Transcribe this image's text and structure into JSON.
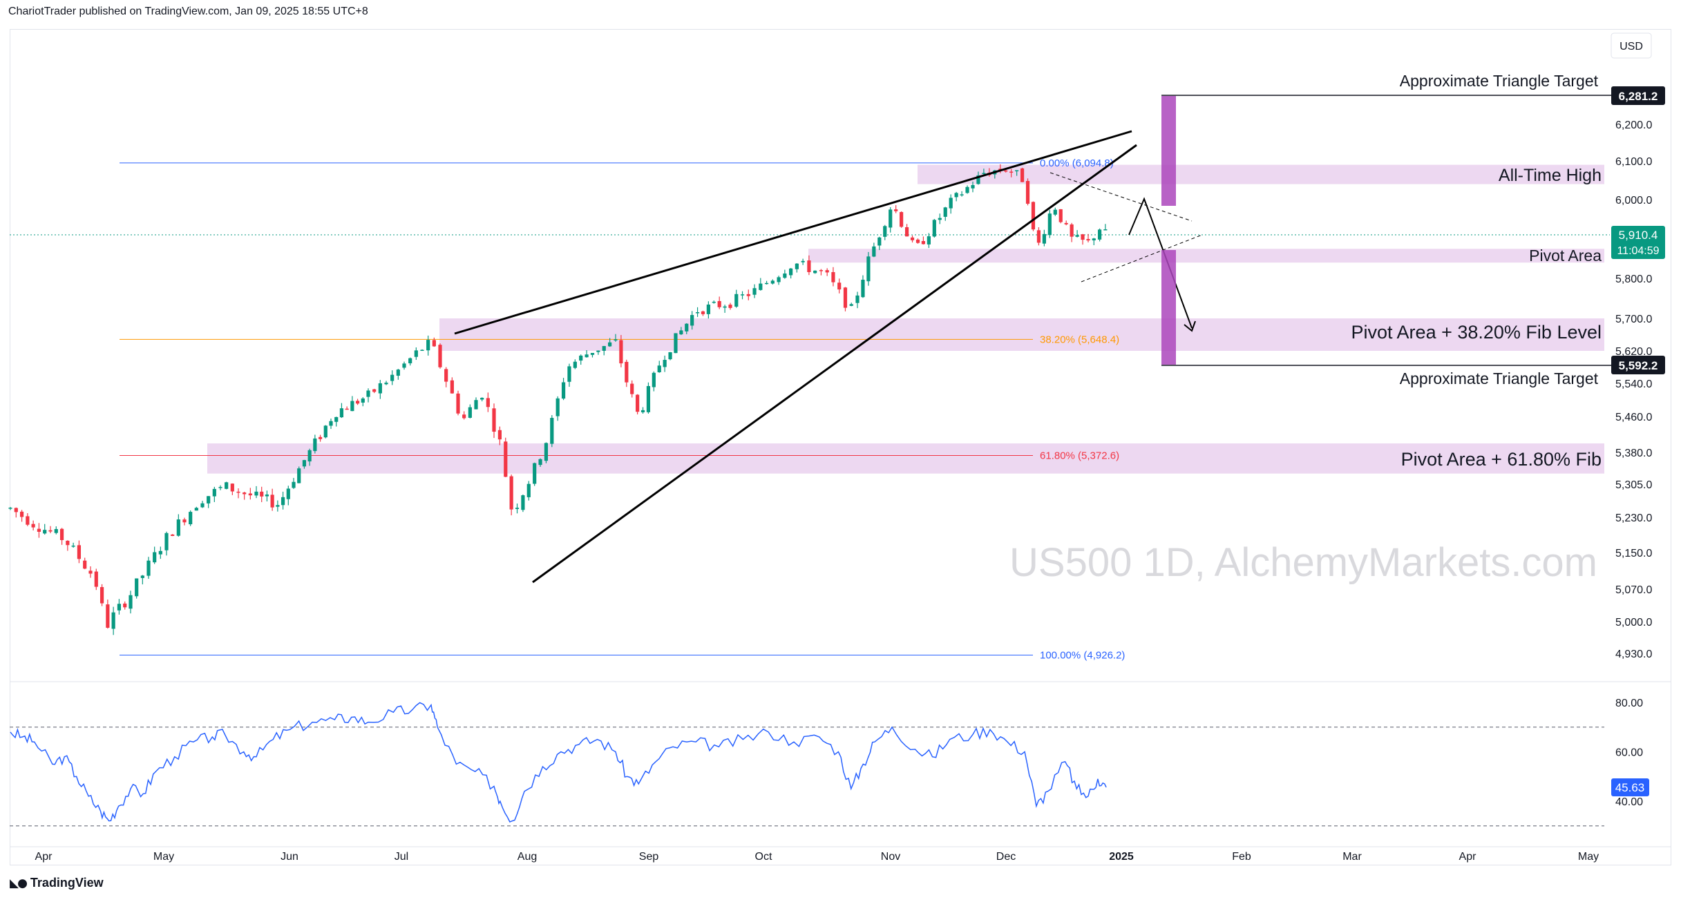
{
  "header": {
    "publish_text": "ChariotTrader published on TradingView.com, Jan 09, 2025 18:55 UTC+8"
  },
  "footer": {
    "logo_icon": "tradingview-logo-icon",
    "brand": "TradingView"
  },
  "currency_button": "USD",
  "watermark": "US500 1D, AlchemyMarkets.com",
  "price_label": {
    "value": "5,910.4",
    "countdown": "11:04:59"
  },
  "target_labels": {
    "upper": "6,281.2",
    "lower": "5,592.2"
  },
  "annotations": {
    "upper_target": "Approximate Triangle Target",
    "all_time_high": "All-Time High",
    "pivot_area": "Pivot Area",
    "pivot_fib_382": "Pivot Area + 38.20% Fib Level",
    "lower_target": "Approximate Triangle Target",
    "pivot_fib_618": "Pivot Area + 61.80% Fib"
  },
  "fib_levels": [
    {
      "label": "0.00% (6,094.8)",
      "value": 6094.8,
      "color": "#2962ff"
    },
    {
      "label": "38.20% (5,648.4)",
      "value": 5648.4,
      "color": "#ff9800"
    },
    {
      "label": "61.80% (5,372.6)",
      "value": 5372.6,
      "color": "#f23645"
    },
    {
      "label": "100.00% (4,926.2)",
      "value": 4926.2,
      "color": "#2962ff"
    }
  ],
  "colors": {
    "up": "#089981",
    "down": "#f23645",
    "zone": "#e1bee7",
    "target_bar": "#ab47bc",
    "rsi": "#2962ff",
    "grid_text": "#131722"
  },
  "chart_data": {
    "type": "candlestick",
    "symbol": "US500",
    "timeframe": "1D",
    "price_axis": {
      "ylim": [
        4870,
        6345
      ],
      "ticks": [
        "6,200.0",
        "6,100.0",
        "6,000.0",
        "5,800.0",
        "5,700.0",
        "5,620.0",
        "5,540.0",
        "5,460.0",
        "5,380.0",
        "5,305.0",
        "5,230.0",
        "5,150.0",
        "5,070.0",
        "5,000.0",
        "4,930.0"
      ],
      "tick_values": [
        6200,
        6100,
        6000,
        5800,
        5700,
        5620,
        5540,
        5460,
        5380,
        5305,
        5230,
        5150,
        5070,
        5000,
        4930
      ]
    },
    "time_axis": {
      "labels": [
        "Apr",
        "May",
        "Jun",
        "Jul",
        "Aug",
        "Sep",
        "Oct",
        "Nov",
        "Dec",
        "2025",
        "Feb",
        "Mar",
        "Apr",
        "May"
      ],
      "months_index": [
        0,
        1,
        2,
        3,
        4,
        5,
        6,
        7,
        8,
        9,
        10,
        11,
        12,
        13
      ]
    },
    "closes": [
      [
        0.0,
        5250
      ],
      [
        0.2,
        5215
      ],
      [
        0.45,
        5180
      ],
      [
        0.7,
        5095
      ],
      [
        0.8,
        4990
      ],
      [
        0.85,
        5010
      ],
      [
        1.0,
        5060
      ],
      [
        1.3,
        5190
      ],
      [
        1.55,
        5270
      ],
      [
        1.75,
        5300
      ],
      [
        2.0,
        5275
      ],
      [
        2.2,
        5260
      ],
      [
        2.4,
        5350
      ],
      [
        2.7,
        5470
      ],
      [
        3.0,
        5510
      ],
      [
        3.2,
        5560
      ],
      [
        3.4,
        5620
      ],
      [
        3.5,
        5640
      ],
      [
        3.55,
        5600
      ],
      [
        3.75,
        5450
      ],
      [
        3.9,
        5520
      ],
      [
        4.05,
        5400
      ],
      [
        4.15,
        5240
      ],
      [
        4.3,
        5320
      ],
      [
        4.45,
        5420
      ],
      [
        4.6,
        5580
      ],
      [
        4.8,
        5620
      ],
      [
        5.0,
        5640
      ],
      [
        5.1,
        5540
      ],
      [
        5.2,
        5460
      ],
      [
        5.4,
        5600
      ],
      [
        5.7,
        5720
      ],
      [
        6.0,
        5740
      ],
      [
        6.2,
        5770
      ],
      [
        6.5,
        5840
      ],
      [
        6.75,
        5810
      ],
      [
        6.95,
        5720
      ],
      [
        7.1,
        5850
      ],
      [
        7.3,
        5990
      ],
      [
        7.5,
        5870
      ],
      [
        7.8,
        5990
      ],
      [
        8.1,
        6070
      ],
      [
        8.3,
        6080
      ],
      [
        8.45,
        6050
      ],
      [
        8.55,
        5870
      ],
      [
        8.7,
        5990
      ],
      [
        8.85,
        5900
      ],
      [
        9.0,
        5890
      ],
      [
        9.1,
        5930
      ],
      [
        9.15,
        5910.4
      ]
    ],
    "rsi": {
      "ylim": [
        30,
        82
      ],
      "ticks": [
        "80.00",
        "60.00",
        "40.00"
      ],
      "tick_values": [
        80,
        60,
        40
      ],
      "overbought": 70,
      "oversold": 30,
      "current_label": "45.63",
      "current": 45.63,
      "series": [
        [
          0.0,
          68
        ],
        [
          0.1,
          66
        ],
        [
          0.2,
          64
        ],
        [
          0.35,
          55
        ],
        [
          0.45,
          58
        ],
        [
          0.55,
          50
        ],
        [
          0.65,
          42
        ],
        [
          0.75,
          36
        ],
        [
          0.82,
          32
        ],
        [
          0.9,
          38
        ],
        [
          1.0,
          45
        ],
        [
          1.1,
          43
        ],
        [
          1.2,
          52
        ],
        [
          1.35,
          58
        ],
        [
          1.5,
          64
        ],
        [
          1.65,
          66
        ],
        [
          1.75,
          67
        ],
        [
          1.9,
          60
        ],
        [
          2.0,
          58
        ],
        [
          2.15,
          65
        ],
        [
          2.3,
          69
        ],
        [
          2.5,
          72
        ],
        [
          2.7,
          73
        ],
        [
          2.85,
          74
        ],
        [
          3.0,
          72
        ],
        [
          3.2,
          76
        ],
        [
          3.35,
          77
        ],
        [
          3.5,
          79
        ],
        [
          3.55,
          70
        ],
        [
          3.7,
          55
        ],
        [
          3.85,
          52
        ],
        [
          4.0,
          46
        ],
        [
          4.05,
          40
        ],
        [
          4.15,
          32
        ],
        [
          4.25,
          44
        ],
        [
          4.4,
          54
        ],
        [
          4.55,
          60
        ],
        [
          4.7,
          63
        ],
        [
          4.85,
          65
        ],
        [
          5.0,
          60
        ],
        [
          5.1,
          50
        ],
        [
          5.2,
          47
        ],
        [
          5.35,
          56
        ],
        [
          5.5,
          62
        ],
        [
          5.7,
          64
        ],
        [
          5.9,
          62
        ],
        [
          6.1,
          65
        ],
        [
          6.3,
          68
        ],
        [
          6.5,
          64
        ],
        [
          6.7,
          66
        ],
        [
          6.85,
          60
        ],
        [
          6.95,
          45
        ],
        [
          7.05,
          55
        ],
        [
          7.15,
          64
        ],
        [
          7.3,
          70
        ],
        [
          7.5,
          61
        ],
        [
          7.65,
          58
        ],
        [
          7.8,
          65
        ],
        [
          8.0,
          67
        ],
        [
          8.15,
          69
        ],
        [
          8.3,
          64
        ],
        [
          8.45,
          60
        ],
        [
          8.55,
          38
        ],
        [
          8.65,
          44
        ],
        [
          8.8,
          56
        ],
        [
          8.9,
          45
        ],
        [
          9.0,
          42
        ],
        [
          9.08,
          49
        ],
        [
          9.15,
          45.63
        ]
      ]
    }
  }
}
